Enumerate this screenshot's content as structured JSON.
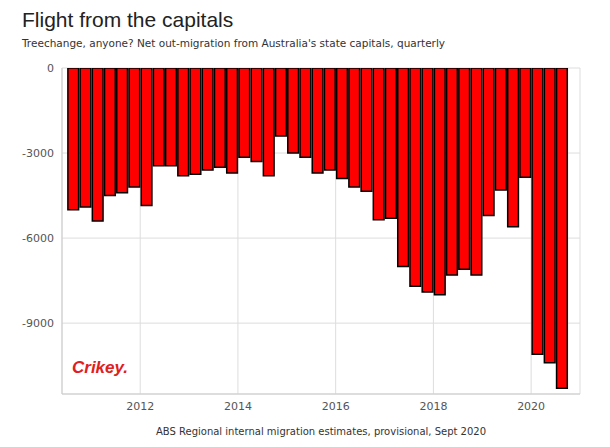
{
  "chart_data": {
    "type": "bar",
    "title": "Flight from the capitals",
    "subtitle": "Treechange, anyone? Net out-migration from Australia's state capitals, quarterly",
    "xlabel": "ABS Regional internal migration estimates, provisional, Sept 2020",
    "annotations": [
      "Crikey."
    ],
    "x": [
      2010.625,
      2010.875,
      2011.125,
      2011.375,
      2011.625,
      2011.875,
      2012.125,
      2012.375,
      2012.625,
      2012.875,
      2013.125,
      2013.375,
      2013.625,
      2013.875,
      2014.125,
      2014.375,
      2014.625,
      2014.875,
      2015.125,
      2015.375,
      2015.625,
      2015.875,
      2016.125,
      2016.375,
      2016.625,
      2016.875,
      2017.125,
      2017.375,
      2017.625,
      2017.875,
      2018.125,
      2018.375,
      2018.625,
      2018.875,
      2019.125,
      2019.375,
      2019.625,
      2019.875,
      2020.125,
      2020.375,
      2020.625
    ],
    "values": [
      -5000,
      -4900,
      -5400,
      -4500,
      -4400,
      -4200,
      -4850,
      -3450,
      -3450,
      -3800,
      -3750,
      -3600,
      -3500,
      -3700,
      -3150,
      -3300,
      -3800,
      -2400,
      -3000,
      -3150,
      -3700,
      -3600,
      -3900,
      -4200,
      -4350,
      -5350,
      -5300,
      -7000,
      -7700,
      -7900,
      -8000,
      -7300,
      -7100,
      -7300,
      -5200,
      -4300,
      -5600,
      -3850,
      -10100,
      -10400,
      -11300
    ],
    "color": "#ff0000",
    "xlim": [
      2010.4,
      2021.0
    ],
    "xticks": [
      2012,
      2014,
      2016,
      2018,
      2020
    ],
    "ylim": [
      -11500,
      0
    ],
    "yticks": [
      0,
      -3000,
      -6000,
      -9000
    ],
    "grid": true
  }
}
